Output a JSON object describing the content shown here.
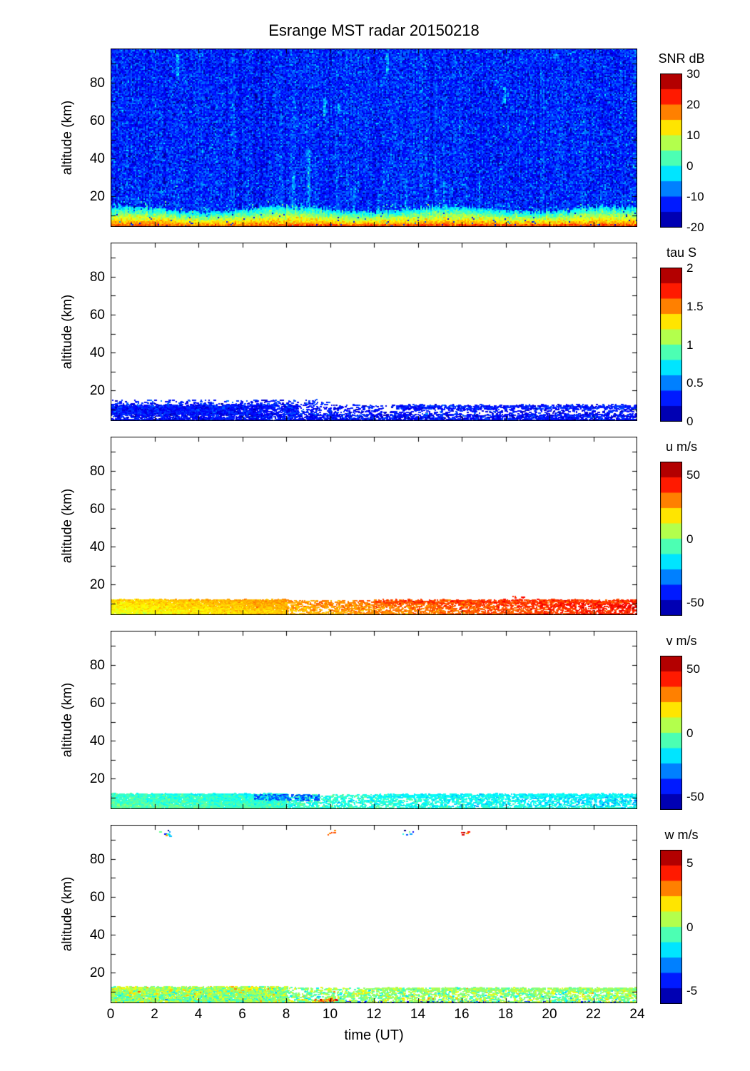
{
  "title": "Esrange MST radar 20150218",
  "xlabel": "time (UT)",
  "ylabel": "altitude (km)",
  "x_ticks": [
    0,
    2,
    4,
    6,
    8,
    10,
    12,
    14,
    16,
    18,
    20,
    22,
    24
  ],
  "y_ticks_labeled": [
    20,
    40,
    60,
    80
  ],
  "y_ticks_all": [
    10,
    20,
    30,
    40,
    50,
    60,
    70,
    80,
    90
  ],
  "xlim": [
    0,
    24
  ],
  "ylim": [
    4,
    98
  ],
  "colormap": "jet",
  "colorbar_steps": 10,
  "chart_data": [
    {
      "name": "snr",
      "type": "heatmap",
      "colorbar_title": "SNR dB",
      "caxis": [
        -20,
        30
      ],
      "colorbar_ticks": [
        30,
        20,
        10,
        0,
        -10,
        -20
      ],
      "render": {
        "background": {
          "mean": -12,
          "std": 3,
          "col_stripe": 0.7,
          "speck_prob": 0.004,
          "speck_boost": 9
        },
        "layer": {
          "top_alt": 13.8,
          "wiggle": 1.4,
          "v_top": -4,
          "v_bottom": 21,
          "noise": 2.2,
          "late_boost": 4,
          "late_start": 8
        },
        "streaks": [
          {
            "t": 9.0,
            "alt": [
              4,
              45
            ],
            "dv": 7
          },
          {
            "t": 9.7,
            "alt": [
              62,
              72
            ],
            "dv": 9
          },
          {
            "t": 10.4,
            "alt": [
              64,
              70
            ],
            "dv": 8
          },
          {
            "t": 3.0,
            "alt": [
              84,
              95
            ],
            "dv": 8
          },
          {
            "t": 12.6,
            "alt": [
              86,
              96
            ],
            "dv": 7
          },
          {
            "t": 17.9,
            "alt": [
              70,
              78
            ],
            "dv": 9
          },
          {
            "t": 13.4,
            "alt": [
              4,
              30
            ],
            "dv": 4
          },
          {
            "t": 15.2,
            "alt": [
              4,
              28
            ],
            "dv": 4
          },
          {
            "t": 16.8,
            "alt": [
              4,
              30
            ],
            "dv": 4
          },
          {
            "t": 11.1,
            "alt": [
              4,
              26
            ],
            "dv": 4
          },
          {
            "t": 8.3,
            "alt": [
              4,
              34
            ],
            "dv": 5
          }
        ],
        "random_streaks": {
          "count": 70,
          "dv": 3,
          "alt_max": 30
        }
      }
    },
    {
      "name": "tau",
      "type": "scatter",
      "colorbar_title": "tau S",
      "caxis": [
        0,
        2
      ],
      "colorbar_ticks": [
        2,
        1.5,
        1,
        0.5,
        0
      ],
      "render": {
        "bands": [
          {
            "t": [
              0,
              5.5
            ],
            "alt": [
              8,
              12
            ],
            "count": 3000,
            "value": {
              "base": 0.3,
              "jitter": 0.08
            }
          },
          {
            "t": [
              0,
              8.5
            ],
            "alt": [
              7.5,
              13
            ],
            "count": 1500,
            "value": {
              "base": 0.28,
              "jitter": 0.08
            }
          },
          {
            "t": [
              0,
              24
            ],
            "alt": [
              4.3,
              8
            ],
            "count": 2200,
            "value": {
              "base": 0.26,
              "jitter": 0.08
            }
          },
          {
            "t": [
              8,
              24
            ],
            "alt": [
              8,
              13
            ],
            "count": 700,
            "value": {
              "base": 0.28,
              "jitter": 0.08
            }
          },
          {
            "t": [
              13,
              24
            ],
            "alt": [
              10.5,
              12.5
            ],
            "count": 450,
            "value": {
              "base": 0.3,
              "jitter": 0.06
            }
          },
          {
            "t": [
              0,
              24
            ],
            "alt": [
              4.2,
              5.2
            ],
            "count": 800,
            "value": {
              "base": 0.25,
              "jitter": 0.07
            }
          },
          {
            "t": [
              0,
              10
            ],
            "alt": [
              13,
              15.5
            ],
            "count": 180,
            "value": {
              "base": 0.3,
              "jitter": 0.1
            }
          }
        ]
      }
    },
    {
      "name": "u",
      "type": "scatter",
      "colorbar_title": "u m/s",
      "caxis": [
        -60,
        60
      ],
      "colorbar_ticks": [
        50,
        0,
        -50
      ],
      "render": {
        "bands": [
          {
            "t": [
              0,
              8
            ],
            "alt": [
              5,
              12.5
            ],
            "count": 3800,
            "value": {
              "base": 15,
              "t_slope": 1.0,
              "alt_slope": 1.0,
              "jitter": 3
            }
          },
          {
            "t": [
              8,
              24
            ],
            "alt": [
              5,
              12
            ],
            "count": 2200,
            "value": {
              "base": 15,
              "t_slope": 1.2,
              "alt_slope": 0.6,
              "jitter": 4
            }
          },
          {
            "t": [
              12,
              24
            ],
            "alt": [
              10.5,
              12.5
            ],
            "count": 500,
            "value": {
              "base": 38,
              "jitter": 4
            }
          },
          {
            "t": [
              0,
              24
            ],
            "alt": [
              4.2,
              5.2
            ],
            "count": 900,
            "value": {
              "base": 12,
              "t_slope": 1.3,
              "jitter": 4
            }
          },
          {
            "t": [
              18.3,
              18.8
            ],
            "alt": [
              13,
              14.2
            ],
            "count": 6,
            "value": {
              "base": 42,
              "jitter": 3
            }
          }
        ]
      }
    },
    {
      "name": "v",
      "type": "scatter",
      "colorbar_title": "v m/s",
      "caxis": [
        -60,
        60
      ],
      "colorbar_ticks": [
        50,
        0,
        -50
      ],
      "render": {
        "bands": [
          {
            "t": [
              0,
              8
            ],
            "alt": [
              5,
              12.5
            ],
            "count": 3600,
            "value": {
              "base": -6,
              "t_slope": -0.5,
              "alt_slope": -0.8,
              "jitter": 4
            }
          },
          {
            "t": [
              8,
              24
            ],
            "alt": [
              5,
              12
            ],
            "count": 2000,
            "value": {
              "base": -6,
              "t_slope": -0.5,
              "jitter": 5
            }
          },
          {
            "t": [
              6.5,
              9.5
            ],
            "alt": [
              9,
              12
            ],
            "count": 150,
            "value": {
              "base": -33,
              "jitter": 6
            }
          },
          {
            "t": [
              12,
              24
            ],
            "alt": [
              10.5,
              12.5
            ],
            "count": 500,
            "value": {
              "base": -15,
              "jitter": 3
            }
          },
          {
            "t": [
              0,
              24
            ],
            "alt": [
              4.2,
              5.2
            ],
            "count": 850,
            "value": {
              "base": -4,
              "t_slope": -0.3,
              "jitter": 4
            }
          }
        ]
      }
    },
    {
      "name": "w",
      "type": "scatter",
      "colorbar_title": "w m/s",
      "caxis": [
        -6,
        6
      ],
      "colorbar_ticks": [
        5,
        0,
        -5
      ],
      "render": {
        "bands": [
          {
            "t": [
              0,
              8
            ],
            "alt": [
              5,
              13
            ],
            "count": 3400,
            "value": {
              "base": 0.2,
              "alt_slope": 0.1,
              "jitter": 0.9
            }
          },
          {
            "t": [
              8,
              24
            ],
            "alt": [
              4.5,
              12.5
            ],
            "count": 2200,
            "value": {
              "base": 0.1,
              "jitter": 0.9
            }
          },
          {
            "t": [
              12,
              24
            ],
            "alt": [
              10.5,
              12.5
            ],
            "count": 450,
            "value": {
              "base": 0.3,
              "jitter": 0.5
            }
          },
          {
            "t": [
              10,
              24
            ],
            "alt": [
              4,
              5.2
            ],
            "count": 300,
            "value": {
              "base": -4.2,
              "jitter": 0.7
            }
          },
          {
            "t": [
              9.2,
              10.3
            ],
            "alt": [
              4,
              6.5
            ],
            "count": 70,
            "value": {
              "base": 3.2,
              "jitter": 1
            }
          },
          {
            "t": [
              0,
              24
            ],
            "alt": [
              4.2,
              5.2
            ],
            "count": 700,
            "value": {
              "base": 0.2,
              "jitter": 0.8
            }
          },
          {
            "t": [
              2.2,
              2.7
            ],
            "alt": [
              92,
              95.5
            ],
            "count": 10,
            "value": {
              "base": -2,
              "jitter": 3
            }
          },
          {
            "t": [
              9.8,
              10.2
            ],
            "alt": [
              93,
              95.5
            ],
            "count": 6,
            "value": {
              "base": 4,
              "jitter": 1
            }
          },
          {
            "t": [
              13.3,
              13.8
            ],
            "alt": [
              92,
              95.5
            ],
            "count": 6,
            "value": {
              "base": -1,
              "jitter": 3
            }
          },
          {
            "t": [
              15.9,
              16.3
            ],
            "alt": [
              93,
              95.5
            ],
            "count": 5,
            "value": {
              "base": 3,
              "jitter": 1.5
            }
          }
        ]
      }
    }
  ]
}
